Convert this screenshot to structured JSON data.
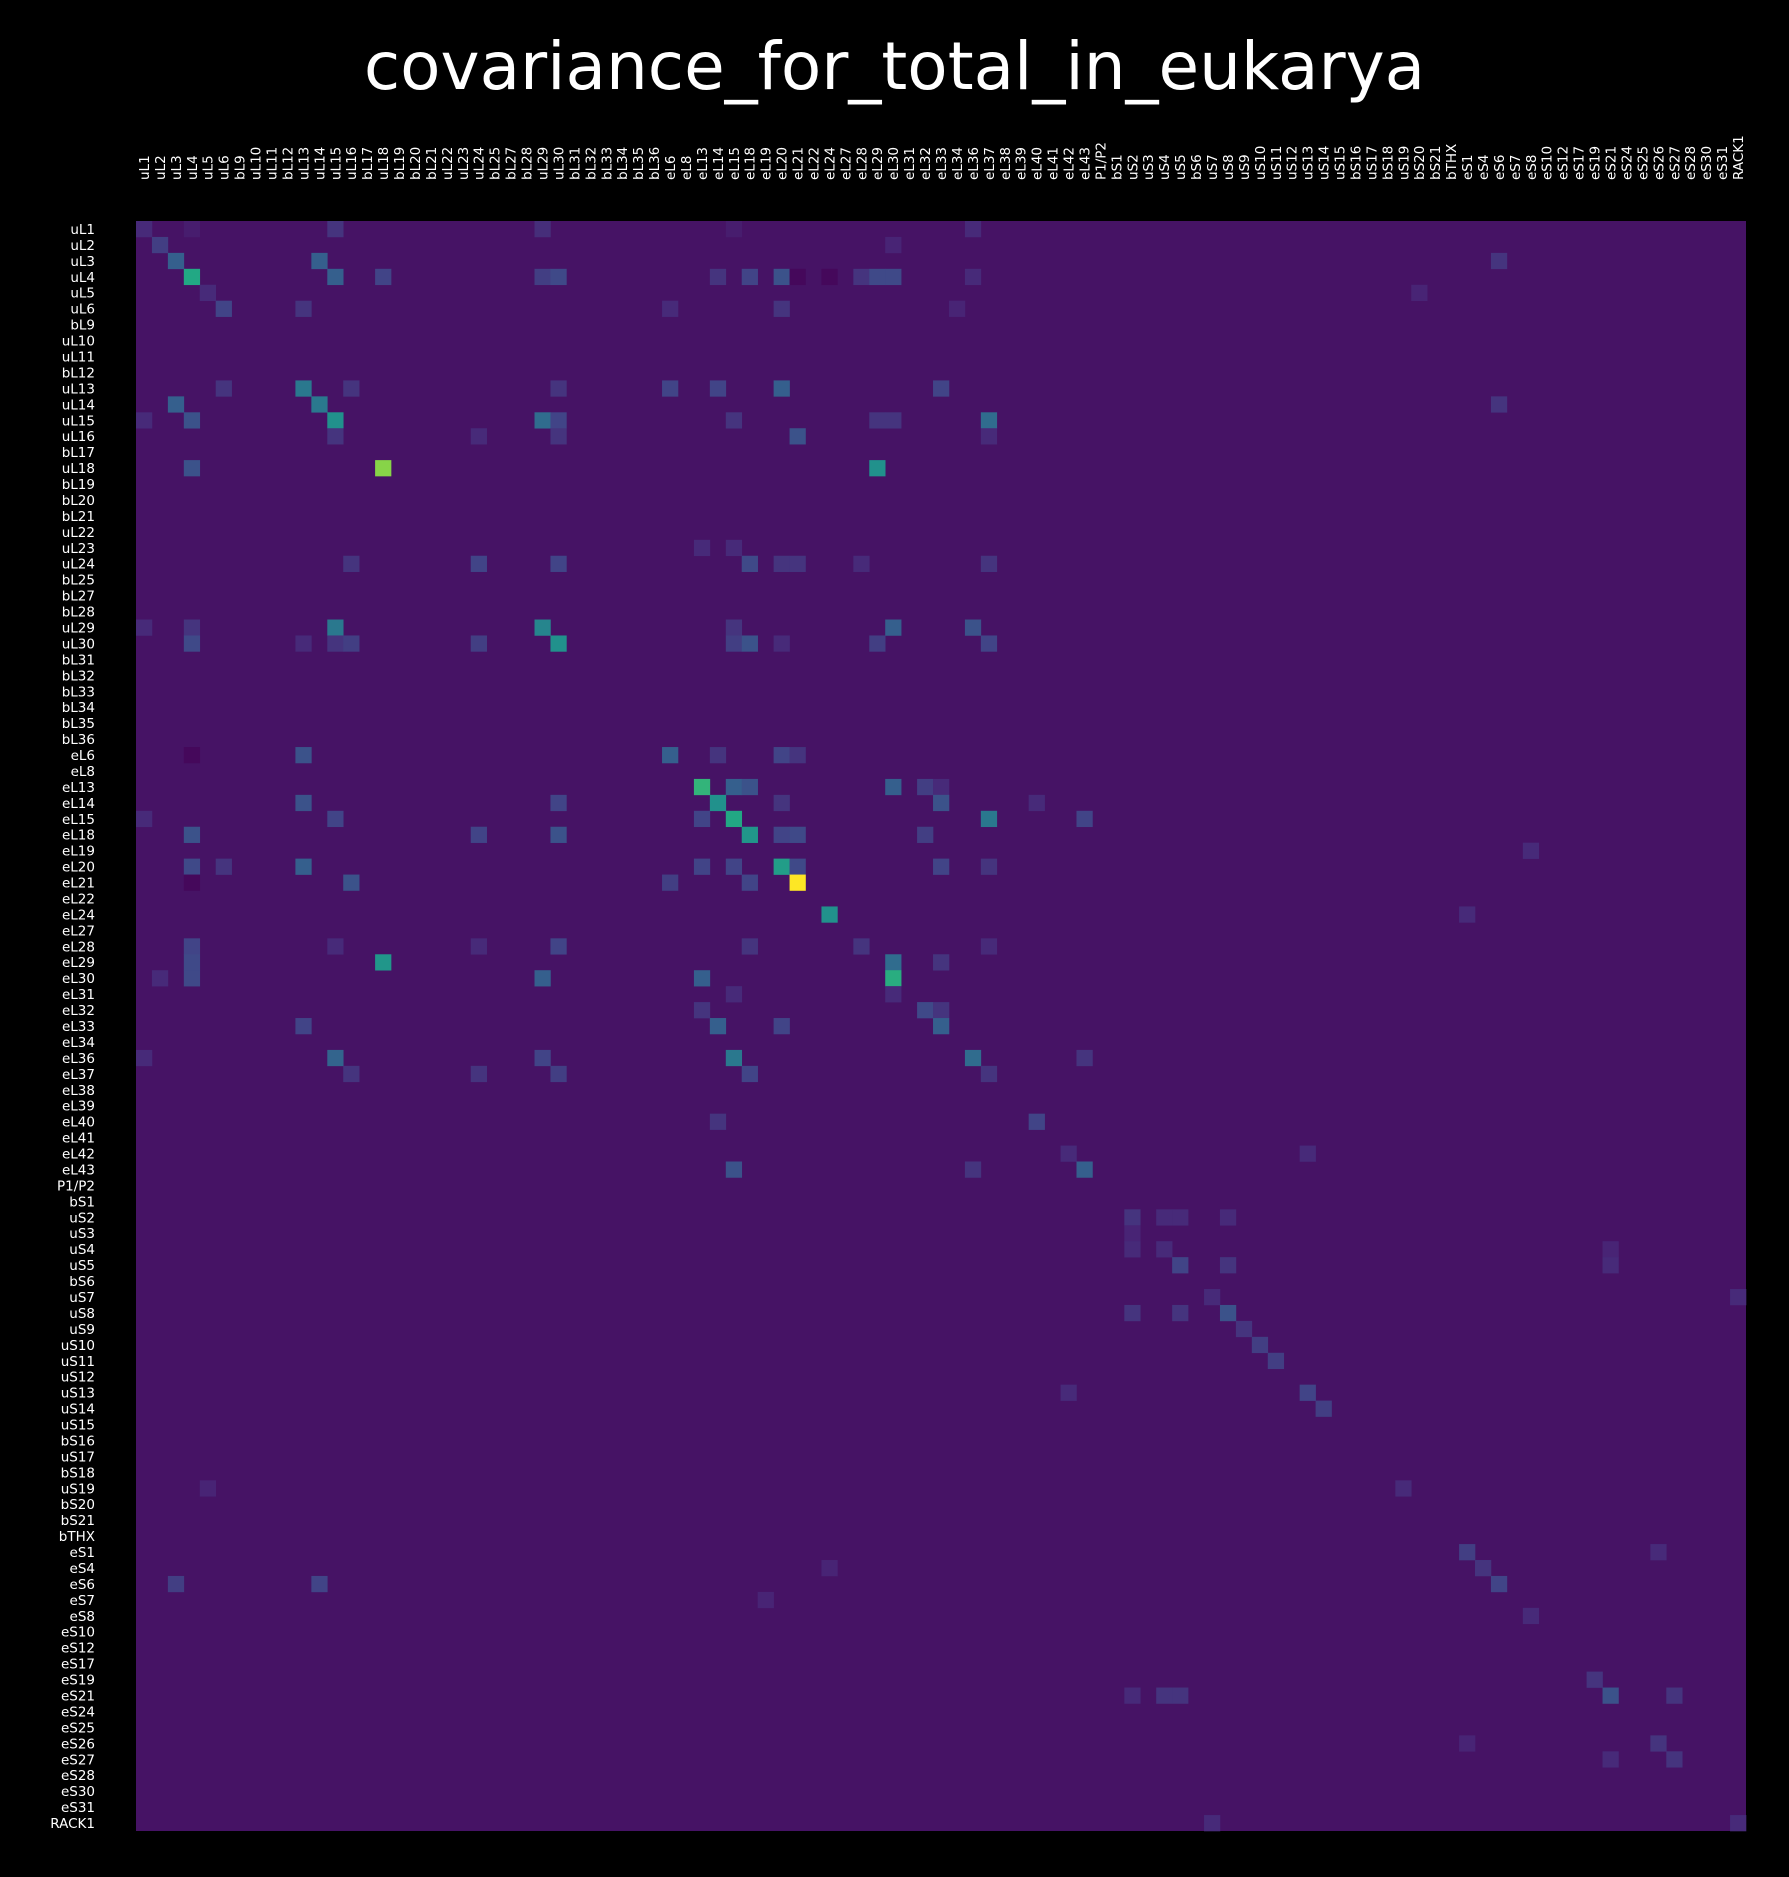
{
  "chart_data": {
    "type": "heatmap",
    "title": "covariance_for_total_in_eukarya",
    "labels": [
      "uL1",
      "uL2",
      "uL3",
      "uL4",
      "uL5",
      "uL6",
      "bL9",
      "uL10",
      "uL11",
      "bL12",
      "uL13",
      "uL14",
      "uL15",
      "uL16",
      "bL17",
      "uL18",
      "bL19",
      "bL20",
      "bL21",
      "uL22",
      "uL23",
      "uL24",
      "bL25",
      "bL27",
      "bL28",
      "uL29",
      "uL30",
      "bL31",
      "bL32",
      "bL33",
      "bL34",
      "bL35",
      "bL36",
      "eL6",
      "eL8",
      "eL13",
      "eL14",
      "eL15",
      "eL18",
      "eL19",
      "eL20",
      "eL21",
      "eL22",
      "eL24",
      "eL27",
      "eL28",
      "eL29",
      "eL30",
      "eL31",
      "eL32",
      "eL33",
      "eL34",
      "eL36",
      "eL37",
      "eL38",
      "eL39",
      "eL40",
      "eL41",
      "eL42",
      "eL43",
      "P1/P2",
      "bS1",
      "uS2",
      "uS3",
      "uS4",
      "uS5",
      "bS6",
      "uS7",
      "uS8",
      "uS9",
      "uS10",
      "uS11",
      "uS12",
      "uS13",
      "uS14",
      "uS15",
      "bS16",
      "uS17",
      "bS18",
      "uS19",
      "bS20",
      "bS21",
      "bTHX",
      "eS1",
      "eS4",
      "eS6",
      "eS7",
      "eS8",
      "eS10",
      "eS12",
      "eS17",
      "eS19",
      "eS21",
      "eS24",
      "eS25",
      "eS26",
      "eS27",
      "eS28",
      "eS30",
      "eS31",
      "RACK1"
    ],
    "value_range": [
      0,
      1
    ],
    "colormap": "viridis",
    "background_value": 0.05,
    "cells": [
      [
        0,
        0,
        0.12
      ],
      [
        0,
        3,
        0.08
      ],
      [
        0,
        12,
        0.15
      ],
      [
        0,
        25,
        0.13
      ],
      [
        0,
        37,
        0.08
      ],
      [
        0,
        52,
        0.12
      ],
      [
        1,
        1,
        0.18
      ],
      [
        1,
        47,
        0.1
      ],
      [
        2,
        2,
        0.3
      ],
      [
        2,
        11,
        0.3
      ],
      [
        2,
        85,
        0.15
      ],
      [
        3,
        3,
        0.6
      ],
      [
        3,
        12,
        0.3
      ],
      [
        3,
        15,
        0.2
      ],
      [
        3,
        25,
        0.18
      ],
      [
        3,
        26,
        0.22
      ],
      [
        3,
        36,
        0.15
      ],
      [
        3,
        38,
        0.2
      ],
      [
        3,
        40,
        0.25
      ],
      [
        3,
        41,
        0.02
      ],
      [
        3,
        43,
        0.02
      ],
      [
        3,
        45,
        0.15
      ],
      [
        3,
        46,
        0.22
      ],
      [
        3,
        47,
        0.22
      ],
      [
        3,
        52,
        0.12
      ],
      [
        4,
        4,
        0.12
      ],
      [
        4,
        80,
        0.1
      ],
      [
        5,
        5,
        0.2
      ],
      [
        5,
        10,
        0.15
      ],
      [
        5,
        33,
        0.12
      ],
      [
        5,
        40,
        0.15
      ],
      [
        5,
        51,
        0.1
      ],
      [
        10,
        5,
        0.15
      ],
      [
        10,
        10,
        0.4
      ],
      [
        10,
        13,
        0.15
      ],
      [
        10,
        26,
        0.15
      ],
      [
        10,
        33,
        0.2
      ],
      [
        10,
        36,
        0.2
      ],
      [
        10,
        40,
        0.3
      ],
      [
        10,
        50,
        0.2
      ],
      [
        11,
        2,
        0.3
      ],
      [
        11,
        11,
        0.4
      ],
      [
        11,
        85,
        0.15
      ],
      [
        12,
        0,
        0.12
      ],
      [
        12,
        3,
        0.25
      ],
      [
        12,
        12,
        0.5
      ],
      [
        12,
        25,
        0.35
      ],
      [
        12,
        26,
        0.2
      ],
      [
        12,
        37,
        0.15
      ],
      [
        12,
        46,
        0.15
      ],
      [
        12,
        47,
        0.15
      ],
      [
        12,
        53,
        0.35
      ],
      [
        13,
        12,
        0.15
      ],
      [
        13,
        21,
        0.12
      ],
      [
        13,
        26,
        0.15
      ],
      [
        13,
        41,
        0.25
      ],
      [
        13,
        53,
        0.12
      ],
      [
        15,
        3,
        0.25
      ],
      [
        15,
        15,
        0.82
      ],
      [
        15,
        46,
        0.5
      ],
      [
        20,
        35,
        0.12
      ],
      [
        20,
        37,
        0.12
      ],
      [
        21,
        13,
        0.15
      ],
      [
        21,
        21,
        0.2
      ],
      [
        21,
        26,
        0.2
      ],
      [
        21,
        38,
        0.22
      ],
      [
        21,
        40,
        0.15
      ],
      [
        21,
        41,
        0.15
      ],
      [
        21,
        45,
        0.12
      ],
      [
        21,
        53,
        0.15
      ],
      [
        25,
        0,
        0.12
      ],
      [
        25,
        3,
        0.15
      ],
      [
        25,
        12,
        0.4
      ],
      [
        25,
        25,
        0.45
      ],
      [
        25,
        37,
        0.15
      ],
      [
        25,
        47,
        0.3
      ],
      [
        25,
        52,
        0.25
      ],
      [
        26,
        3,
        0.22
      ],
      [
        26,
        10,
        0.12
      ],
      [
        26,
        12,
        0.15
      ],
      [
        26,
        13,
        0.18
      ],
      [
        26,
        21,
        0.18
      ],
      [
        26,
        26,
        0.5
      ],
      [
        26,
        37,
        0.18
      ],
      [
        26,
        38,
        0.25
      ],
      [
        26,
        40,
        0.12
      ],
      [
        26,
        46,
        0.18
      ],
      [
        26,
        53,
        0.2
      ],
      [
        33,
        3,
        0.02
      ],
      [
        33,
        10,
        0.25
      ],
      [
        33,
        33,
        0.3
      ],
      [
        33,
        36,
        0.15
      ],
      [
        33,
        40,
        0.2
      ],
      [
        33,
        41,
        0.15
      ],
      [
        35,
        35,
        0.65
      ],
      [
        35,
        37,
        0.3
      ],
      [
        35,
        38,
        0.25
      ],
      [
        35,
        47,
        0.3
      ],
      [
        35,
        49,
        0.18
      ],
      [
        35,
        50,
        0.12
      ],
      [
        36,
        10,
        0.25
      ],
      [
        36,
        26,
        0.2
      ],
      [
        36,
        36,
        0.5
      ],
      [
        36,
        40,
        0.15
      ],
      [
        36,
        50,
        0.25
      ],
      [
        36,
        56,
        0.12
      ],
      [
        37,
        0,
        0.12
      ],
      [
        37,
        12,
        0.2
      ],
      [
        37,
        35,
        0.2
      ],
      [
        37,
        37,
        0.6
      ],
      [
        37,
        53,
        0.4
      ],
      [
        37,
        59,
        0.2
      ],
      [
        38,
        3,
        0.25
      ],
      [
        38,
        21,
        0.2
      ],
      [
        38,
        26,
        0.25
      ],
      [
        38,
        38,
        0.52
      ],
      [
        38,
        40,
        0.2
      ],
      [
        38,
        41,
        0.22
      ],
      [
        38,
        49,
        0.18
      ],
      [
        39,
        87,
        0.12
      ],
      [
        40,
        3,
        0.22
      ],
      [
        40,
        5,
        0.15
      ],
      [
        40,
        10,
        0.3
      ],
      [
        40,
        35,
        0.2
      ],
      [
        40,
        37,
        0.2
      ],
      [
        40,
        40,
        0.55
      ],
      [
        40,
        41,
        0.22
      ],
      [
        40,
        50,
        0.2
      ],
      [
        40,
        53,
        0.15
      ],
      [
        41,
        3,
        0.02
      ],
      [
        41,
        13,
        0.25
      ],
      [
        41,
        33,
        0.18
      ],
      [
        41,
        38,
        0.2
      ],
      [
        41,
        41,
        1.0
      ],
      [
        43,
        43,
        0.5
      ],
      [
        43,
        83,
        0.12
      ],
      [
        45,
        3,
        0.2
      ],
      [
        45,
        12,
        0.12
      ],
      [
        45,
        21,
        0.12
      ],
      [
        45,
        26,
        0.2
      ],
      [
        45,
        38,
        0.15
      ],
      [
        45,
        45,
        0.15
      ],
      [
        45,
        53,
        0.12
      ],
      [
        46,
        3,
        0.22
      ],
      [
        46,
        15,
        0.52
      ],
      [
        46,
        47,
        0.35
      ],
      [
        46,
        50,
        0.15
      ],
      [
        47,
        1,
        0.12
      ],
      [
        47,
        3,
        0.22
      ],
      [
        47,
        25,
        0.3
      ],
      [
        47,
        35,
        0.3
      ],
      [
        47,
        47,
        0.62
      ],
      [
        48,
        37,
        0.12
      ],
      [
        48,
        47,
        0.12
      ],
      [
        49,
        35,
        0.15
      ],
      [
        49,
        49,
        0.22
      ],
      [
        49,
        50,
        0.15
      ],
      [
        50,
        10,
        0.2
      ],
      [
        50,
        36,
        0.3
      ],
      [
        50,
        40,
        0.2
      ],
      [
        50,
        50,
        0.3
      ],
      [
        52,
        0,
        0.12
      ],
      [
        52,
        12,
        0.32
      ],
      [
        52,
        25,
        0.2
      ],
      [
        52,
        37,
        0.4
      ],
      [
        52,
        52,
        0.35
      ],
      [
        52,
        59,
        0.15
      ],
      [
        53,
        13,
        0.15
      ],
      [
        53,
        21,
        0.15
      ],
      [
        53,
        26,
        0.18
      ],
      [
        53,
        38,
        0.2
      ],
      [
        53,
        53,
        0.15
      ],
      [
        56,
        36,
        0.15
      ],
      [
        56,
        56,
        0.2
      ],
      [
        58,
        58,
        0.12
      ],
      [
        58,
        73,
        0.12
      ],
      [
        59,
        37,
        0.25
      ],
      [
        59,
        52,
        0.15
      ],
      [
        59,
        59,
        0.3
      ],
      [
        62,
        62,
        0.15
      ],
      [
        62,
        64,
        0.12
      ],
      [
        62,
        65,
        0.12
      ],
      [
        62,
        68,
        0.12
      ],
      [
        63,
        62,
        0.1
      ],
      [
        64,
        62,
        0.12
      ],
      [
        64,
        64,
        0.12
      ],
      [
        64,
        92,
        0.1
      ],
      [
        65,
        65,
        0.2
      ],
      [
        65,
        68,
        0.15
      ],
      [
        65,
        92,
        0.12
      ],
      [
        67,
        67,
        0.12
      ],
      [
        67,
        100,
        0.12
      ],
      [
        68,
        62,
        0.15
      ],
      [
        68,
        65,
        0.15
      ],
      [
        68,
        68,
        0.25
      ],
      [
        69,
        69,
        0.15
      ],
      [
        70,
        70,
        0.18
      ],
      [
        71,
        71,
        0.18
      ],
      [
        73,
        58,
        0.12
      ],
      [
        73,
        73,
        0.2
      ],
      [
        74,
        74,
        0.18
      ],
      [
        79,
        4,
        0.1
      ],
      [
        79,
        79,
        0.12
      ],
      [
        83,
        83,
        0.18
      ],
      [
        83,
        95,
        0.12
      ],
      [
        84,
        43,
        0.1
      ],
      [
        84,
        84,
        0.15
      ],
      [
        85,
        2,
        0.18
      ],
      [
        85,
        11,
        0.2
      ],
      [
        85,
        85,
        0.2
      ],
      [
        86,
        39,
        0.1
      ],
      [
        87,
        87,
        0.12
      ],
      [
        91,
        91,
        0.15
      ],
      [
        92,
        62,
        0.12
      ],
      [
        92,
        64,
        0.15
      ],
      [
        92,
        65,
        0.15
      ],
      [
        92,
        92,
        0.25
      ],
      [
        92,
        96,
        0.15
      ],
      [
        95,
        83,
        0.1
      ],
      [
        95,
        95,
        0.15
      ],
      [
        96,
        92,
        0.12
      ],
      [
        96,
        96,
        0.15
      ],
      [
        100,
        67,
        0.12
      ],
      [
        100,
        100,
        0.12
      ]
    ]
  }
}
